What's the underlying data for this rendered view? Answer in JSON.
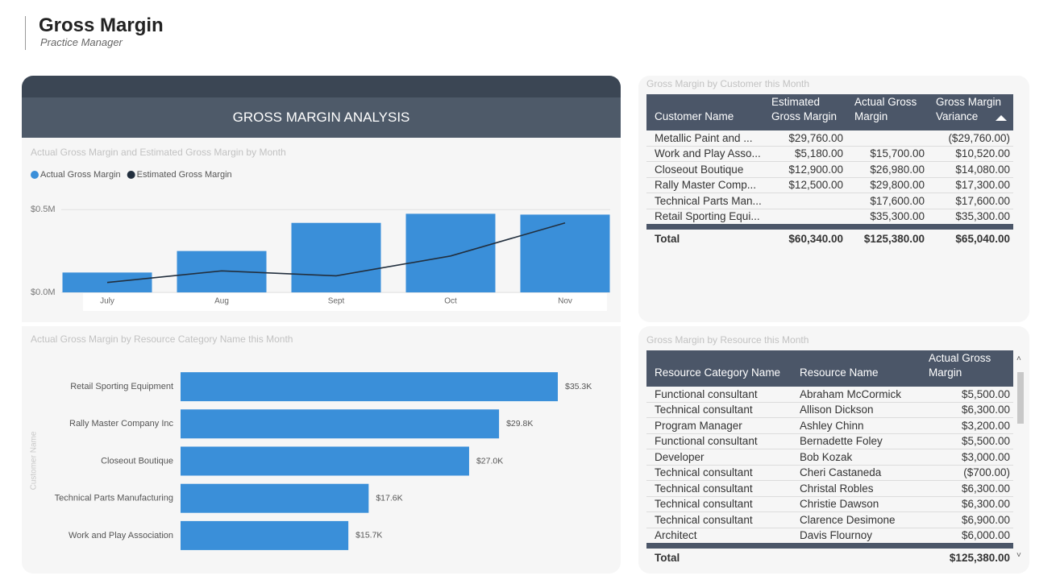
{
  "header": {
    "title": "Gross Margin",
    "subtitle": "Practice Manager"
  },
  "banner": "GROSS MARGIN ANALYSIS",
  "chart_data": [
    {
      "type": "combo",
      "title": "Actual Gross Margin and Estimated Gross Margin by Month",
      "categories": [
        "July",
        "Aug",
        "Sept",
        "Oct",
        "Nov"
      ],
      "series": [
        {
          "name": "Actual Gross Margin",
          "color": "#3a8fd9",
          "mark": "bar",
          "values": [
            120000,
            250000,
            420000,
            475000,
            470000
          ]
        },
        {
          "name": "Estimated Gross Margin",
          "color": "#222f3e",
          "mark": "line",
          "values": [
            60000,
            130000,
            100000,
            220000,
            420000
          ]
        }
      ],
      "ylim": [
        0,
        550000
      ],
      "yticks": [
        {
          "value": 0,
          "label": "$0.0M"
        },
        {
          "value": 500000,
          "label": "$0.5M"
        }
      ],
      "grid": true
    },
    {
      "type": "hbar",
      "title": "Actual Gross Margin by Resource Category Name this Month",
      "y_label": "Customer Name",
      "categories": [
        "Retail Sporting Equipment",
        "Rally Master Company Inc",
        "Closeout Boutique",
        "Technical Parts Manufacturing",
        "Work and Play Association"
      ],
      "values": [
        35300,
        29800,
        27000,
        17600,
        15700
      ],
      "value_labels": [
        "$35.3K",
        "$29.8K",
        "$27.0K",
        "$17.6K",
        "$15.7K"
      ],
      "color": "#3a8fd9",
      "xlim": [
        0,
        35300
      ]
    }
  ],
  "customer_table": {
    "title": "Gross Margin by Customer this Month",
    "columns": [
      "Customer Name",
      "Estimated Gross Margin",
      "Actual Gross Margin",
      "Gross Margin Variance"
    ],
    "rows": [
      [
        "Metallic Paint and ...",
        "$29,760.00",
        null,
        "($29,760.00)"
      ],
      [
        "Work and Play Asso...",
        "$5,180.00",
        "$15,700.00",
        "$10,520.00"
      ],
      [
        "Closeout Boutique",
        "$12,900.00",
        "$26,980.00",
        "$14,080.00"
      ],
      [
        "Rally Master Comp...",
        "$12,500.00",
        "$29,800.00",
        "$17,300.00"
      ],
      [
        "Technical Parts Man...",
        null,
        "$17,600.00",
        "$17,600.00"
      ],
      [
        "Retail Sporting Equi...",
        null,
        "$35,300.00",
        "$35,300.00"
      ]
    ],
    "total": [
      "Total",
      "$60,340.00",
      "$125,380.00",
      "$65,040.00"
    ]
  },
  "resource_table": {
    "title": "Gross Margin by Resource this Month",
    "columns": [
      "Resource Category Name",
      "Resource Name",
      "Actual Gross Margin"
    ],
    "rows": [
      [
        "Functional consultant",
        "Abraham McCormick",
        "$5,500.00"
      ],
      [
        "Technical consultant",
        "Allison Dickson",
        "$6,300.00"
      ],
      [
        "Program Manager",
        "Ashley Chinn",
        "$3,200.00"
      ],
      [
        "Functional consultant",
        "Bernadette Foley",
        "$5,500.00"
      ],
      [
        "Developer",
        "Bob Kozak",
        "$3,000.00"
      ],
      [
        "Technical consultant",
        "Cheri Castaneda",
        "($700.00)"
      ],
      [
        "Technical consultant",
        "Christal Robles",
        "$6,300.00"
      ],
      [
        "Technical consultant",
        "Christie Dawson",
        "$6,300.00"
      ],
      [
        "Technical consultant",
        "Clarence Desimone",
        "$6,900.00"
      ],
      [
        "Architect",
        "Davis Flournoy",
        "$6,000.00"
      ]
    ],
    "total": [
      "Total",
      null,
      "$125,380.00"
    ]
  }
}
